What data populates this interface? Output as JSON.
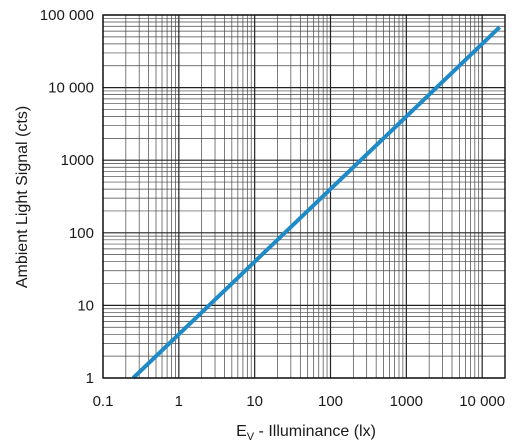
{
  "chart_data": {
    "type": "line",
    "title": "",
    "xlabel": "E_V - Illuminance (lx)",
    "xlabel_main": "E",
    "xlabel_sub": "V",
    "xlabel_rest": " - Illuminance (lx)",
    "ylabel": "Ambient Light Signal (cts)",
    "xscale": "log",
    "yscale": "log",
    "xlim": [
      0.1,
      20000
    ],
    "ylim": [
      1,
      100000
    ],
    "grid": true,
    "x_ticks": [
      {
        "value": 0.1,
        "label": "0.1"
      },
      {
        "value": 1,
        "label": "1"
      },
      {
        "value": 10,
        "label": "10"
      },
      {
        "value": 100,
        "label": "100"
      },
      {
        "value": 1000,
        "label": "1000"
      },
      {
        "value": 10000,
        "label": "10 000"
      }
    ],
    "y_ticks": [
      {
        "value": 1,
        "label": "1"
      },
      {
        "value": 10,
        "label": "10"
      },
      {
        "value": 100,
        "label": "100"
      },
      {
        "value": 1000,
        "label": "1000"
      },
      {
        "value": 10000,
        "label": "10 000"
      },
      {
        "value": 100000,
        "label": "100 000"
      }
    ],
    "series": [
      {
        "color": "#1f8ac8",
        "x": [
          0.25,
          2.5,
          25,
          250,
          2500,
          17000
        ],
        "y": [
          1,
          10,
          100,
          1000,
          10000,
          68000
        ]
      }
    ]
  }
}
